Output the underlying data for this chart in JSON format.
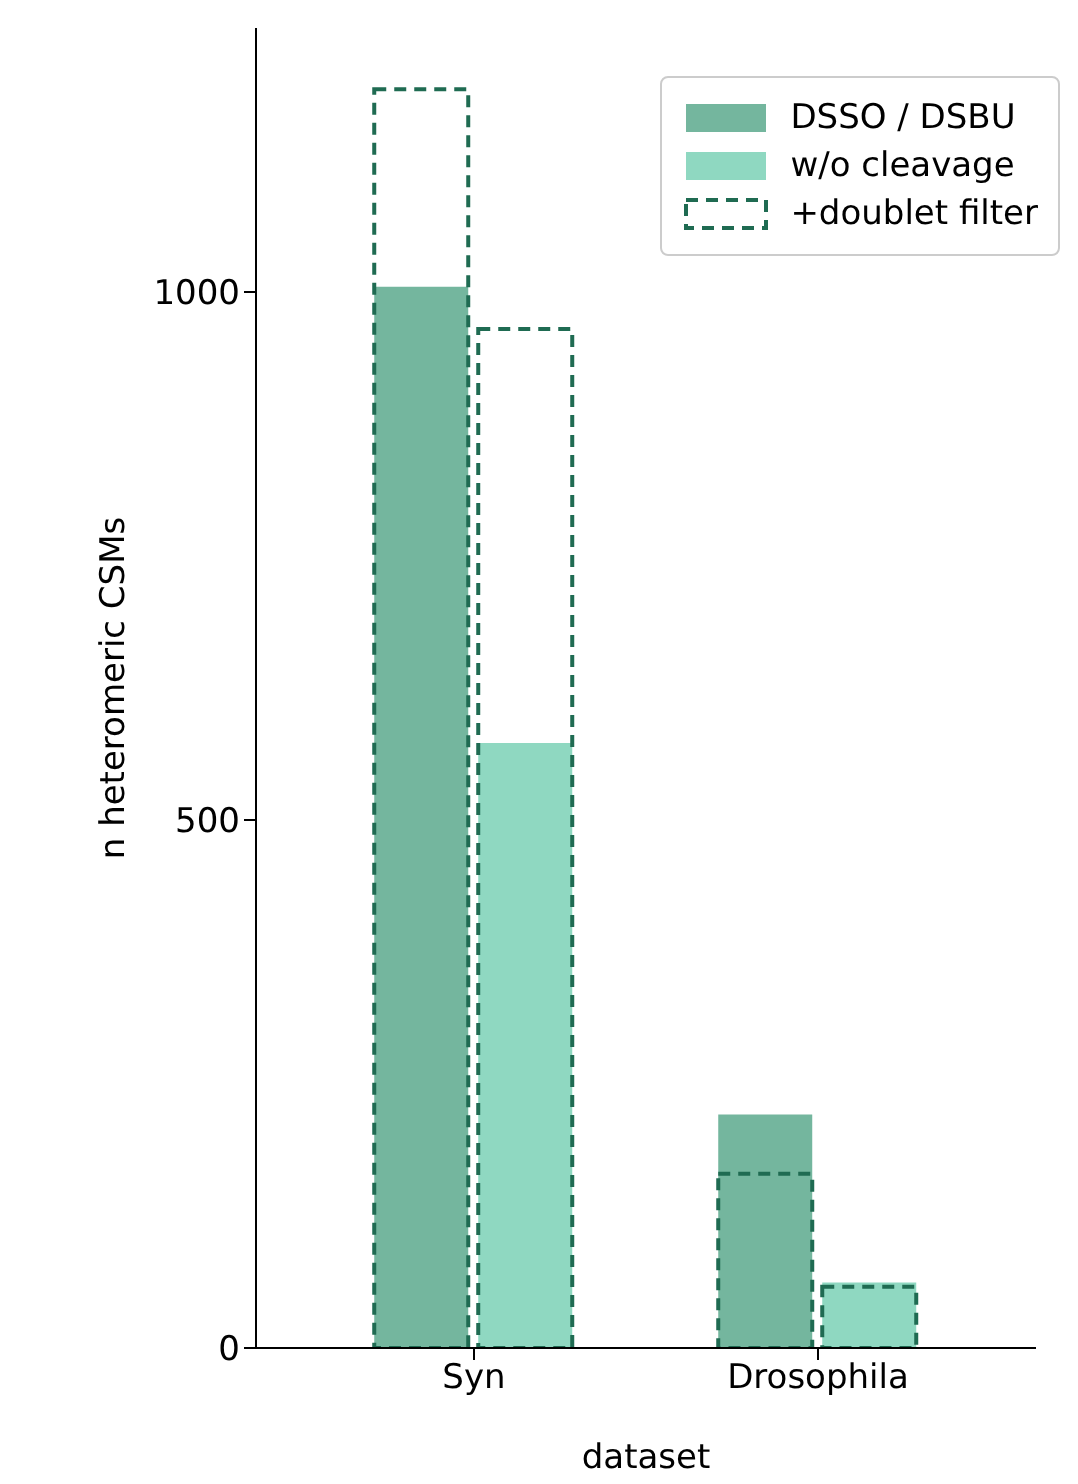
{
  "chart_data": {
    "type": "bar",
    "xlabel": "dataset",
    "ylabel": "n heteromeric CSMs",
    "categories": [
      "Syn",
      "Drosophila"
    ],
    "series": [
      {
        "name": "DSSO / DSBU",
        "color": "#74b69e",
        "values": [
          1005,
          221
        ]
      },
      {
        "name": "w/o cleavage",
        "color": "#8fd8c1",
        "values": [
          573,
          62
        ]
      },
      {
        "name": "+doublet filter",
        "color": "#1f6b52",
        "line_style": "dashed",
        "values": [
          1192,
          165
        ]
      },
      {
        "color": "#1f6b52",
        "line_style": "dashed",
        "values": [
          965,
          58
        ]
      }
    ],
    "ylim": [
      0,
      1250
    ],
    "yticks": [
      0,
      500,
      1000
    ],
    "legend": "top right"
  }
}
